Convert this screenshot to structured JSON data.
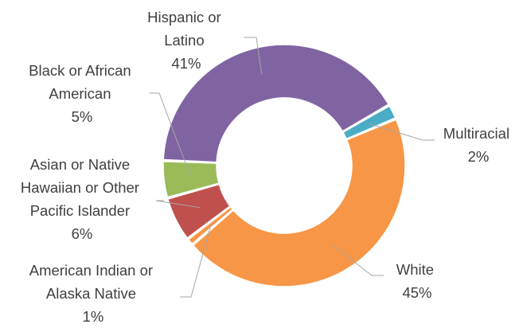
{
  "chart_data": {
    "type": "pie",
    "variant": "donut",
    "title": "",
    "legend": "none",
    "slices": [
      {
        "label": "Multiracial",
        "value": 2,
        "display": "2%",
        "color": "#4bacc6"
      },
      {
        "label": "White",
        "value": 45,
        "display": "45%",
        "color": "#f79646"
      },
      {
        "label": "American Indian or Alaska Native",
        "value": 1,
        "display": "1%",
        "color": "#f79646"
      },
      {
        "label": "Asian or Native Hawaiian or Other Pacific Islander",
        "value": 6,
        "display": "6%",
        "color": "#c0504d"
      },
      {
        "label": "Black or African American",
        "value": 5,
        "display": "5%",
        "color": "#9bbb59"
      },
      {
        "label": "Hispanic or Latino",
        "value": 41,
        "display": "41%",
        "color": "#8064a2"
      }
    ]
  }
}
